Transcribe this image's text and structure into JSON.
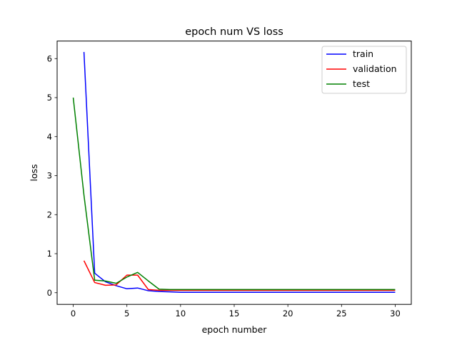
{
  "chart_data": {
    "type": "line",
    "title": "epoch num VS loss",
    "xlabel": "epoch number",
    "ylabel": "loss",
    "xlim": [
      -1.5,
      31.5
    ],
    "ylim": [
      -0.3,
      6.45
    ],
    "x_ticks": [
      0,
      5,
      10,
      15,
      20,
      25,
      30
    ],
    "y_ticks": [
      0,
      1,
      2,
      3,
      4,
      5,
      6
    ],
    "grid": false,
    "legend_position": "top-right",
    "series": [
      {
        "name": "train",
        "color": "#0000ff",
        "x": [
          1,
          2,
          3,
          4,
          5,
          6,
          7,
          8,
          9,
          10,
          11,
          12,
          13,
          14,
          15,
          16,
          17,
          18,
          19,
          20,
          21,
          22,
          23,
          24,
          25,
          26,
          27,
          28,
          29,
          30
        ],
        "y": [
          6.17,
          0.5,
          0.28,
          0.18,
          0.1,
          0.12,
          0.05,
          0.03,
          0.02,
          0.01,
          0.01,
          0.01,
          0.01,
          0.01,
          0.01,
          0.01,
          0.01,
          0.01,
          0.01,
          0.01,
          0.01,
          0.01,
          0.01,
          0.01,
          0.01,
          0.01,
          0.01,
          0.01,
          0.01,
          0.01
        ]
      },
      {
        "name": "validation",
        "color": "#ff0000",
        "x": [
          1,
          2,
          3,
          4,
          5,
          6,
          7,
          8,
          9,
          10,
          11,
          12,
          13,
          14,
          15,
          16,
          17,
          18,
          19,
          20,
          21,
          22,
          23,
          24,
          25,
          26,
          27,
          28,
          29,
          30
        ],
        "y": [
          0.82,
          0.26,
          0.19,
          0.2,
          0.45,
          0.45,
          0.08,
          0.06,
          0.06,
          0.06,
          0.06,
          0.06,
          0.06,
          0.06,
          0.06,
          0.06,
          0.06,
          0.06,
          0.06,
          0.06,
          0.06,
          0.06,
          0.06,
          0.06,
          0.06,
          0.06,
          0.06,
          0.06,
          0.06,
          0.06
        ]
      },
      {
        "name": "test",
        "color": "#008000",
        "x": [
          0,
          1,
          2,
          3,
          4,
          5,
          6,
          7,
          8,
          9,
          10,
          11,
          12,
          13,
          14,
          15,
          16,
          17,
          18,
          19,
          20,
          21,
          22,
          23,
          24,
          25,
          26,
          27,
          28,
          29,
          30
        ],
        "y": [
          5.0,
          2.5,
          0.32,
          0.3,
          0.24,
          0.4,
          0.52,
          0.3,
          0.09,
          0.08,
          0.08,
          0.08,
          0.08,
          0.08,
          0.08,
          0.08,
          0.08,
          0.08,
          0.08,
          0.08,
          0.08,
          0.08,
          0.08,
          0.08,
          0.08,
          0.08,
          0.08,
          0.08,
          0.08,
          0.08,
          0.08
        ]
      }
    ]
  }
}
